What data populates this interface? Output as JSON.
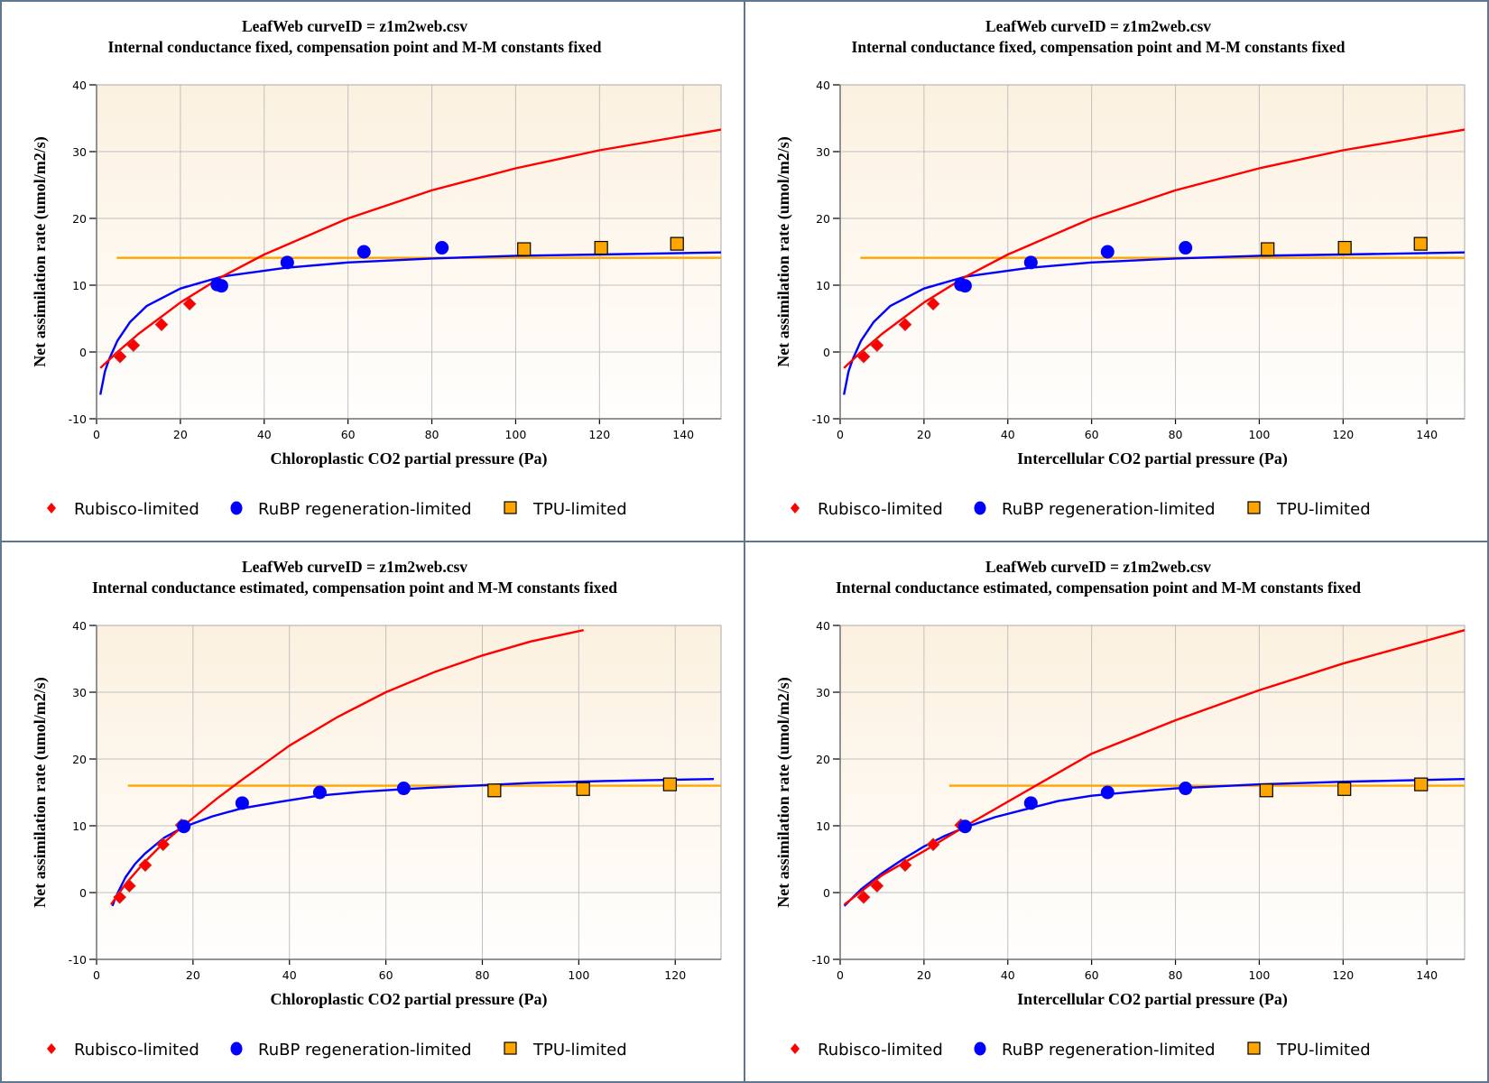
{
  "colors": {
    "rubisco": "#ff0000",
    "rubp": "#0000ff",
    "tpu": "#ffa500",
    "plot_bg_top": "#fcf1e0",
    "plot_bg_bottom": "#fffefd",
    "grid": "#c0c0c0",
    "divider": "#5e7894"
  },
  "legend": {
    "rubisco_label": "Rubisco-limited",
    "rubp_label": "RuBP regeneration-limited",
    "tpu_label": "TPU-limited"
  },
  "chart_data": [
    {
      "type": "scatter",
      "title": "LeafWeb curveID = z1m2web.csv",
      "subtitle": "Internal conductance fixed, compensation point and M-M constants fixed",
      "xlabel": "Chloroplastic CO2 partial pressure (Pa)",
      "ylabel": "Net assimilation rate (umol/m2/s)",
      "xlim": [
        0,
        149
      ],
      "ylim": [
        -10,
        40
      ],
      "xticks": [
        0,
        20,
        40,
        60,
        80,
        100,
        120,
        140
      ],
      "yticks": [
        -10,
        0,
        10,
        20,
        30,
        40
      ],
      "grid": true,
      "legend_position": "bottom",
      "series": [
        {
          "name": "Rubisco-limited",
          "kind": "points",
          "marker": "diamond",
          "points": [
            [
              5.6,
              -0.7
            ],
            [
              8.8,
              1.0
            ],
            [
              15.5,
              4.1
            ],
            [
              22.2,
              7.2
            ]
          ]
        },
        {
          "name": "RuBP regeneration-limited",
          "kind": "points",
          "marker": "circle",
          "points": [
            [
              28.8,
              10.1
            ],
            [
              29.8,
              9.9
            ],
            [
              45.5,
              13.4
            ],
            [
              63.8,
              15.0
            ],
            [
              82.4,
              15.6
            ]
          ]
        },
        {
          "name": "TPU-limited",
          "kind": "points",
          "marker": "square",
          "points": [
            [
              102.0,
              15.4
            ],
            [
              120.4,
              15.6
            ],
            [
              138.5,
              16.2
            ]
          ]
        },
        {
          "name": "Rubisco-limited fit",
          "kind": "line",
          "color_key": "rubisco",
          "points": [
            [
              0.9,
              -2.4
            ],
            [
              5,
              0.0
            ],
            [
              10,
              2.7
            ],
            [
              20,
              7.4
            ],
            [
              30,
              11.3
            ],
            [
              40,
              14.6
            ],
            [
              60,
              20.0
            ],
            [
              80,
              24.2
            ],
            [
              100,
              27.5
            ],
            [
              120,
              30.2
            ],
            [
              149,
              33.3
            ]
          ]
        },
        {
          "name": "RuBP regeneration-limited fit",
          "kind": "line",
          "color_key": "rubp",
          "points": [
            [
              0.9,
              -6.4
            ],
            [
              2,
              -2.9
            ],
            [
              3,
              -1.1
            ],
            [
              5,
              1.7
            ],
            [
              8,
              4.5
            ],
            [
              12,
              6.9
            ],
            [
              20,
              9.5
            ],
            [
              30,
              11.3
            ],
            [
              45,
              12.6
            ],
            [
              60,
              13.4
            ],
            [
              80,
              14.0
            ],
            [
              100,
              14.4
            ],
            [
              120,
              14.6
            ],
            [
              149,
              14.9
            ]
          ]
        },
        {
          "name": "TPU-limited fit",
          "kind": "line",
          "color_key": "tpu",
          "points": [
            [
              4.8,
              14.1
            ],
            [
              149,
              14.1
            ]
          ]
        }
      ]
    },
    {
      "type": "scatter",
      "title": "LeafWeb curveID = z1m2web.csv",
      "subtitle": "Internal conductance fixed, compensation point and M-M constants fixed",
      "xlabel": "Intercellular CO2 partial pressure (Pa)",
      "ylabel": "Net assimilation rate (umol/m2/s)",
      "xlim": [
        0,
        149
      ],
      "ylim": [
        -10,
        40
      ],
      "xticks": [
        0,
        20,
        40,
        60,
        80,
        100,
        120,
        140
      ],
      "yticks": [
        -10,
        0,
        10,
        20,
        30,
        40
      ],
      "grid": true,
      "legend_position": "bottom",
      "series": [
        {
          "name": "Rubisco-limited",
          "kind": "points",
          "marker": "diamond",
          "points": [
            [
              5.6,
              -0.7
            ],
            [
              8.8,
              1.0
            ],
            [
              15.5,
              4.1
            ],
            [
              22.2,
              7.2
            ]
          ]
        },
        {
          "name": "RuBP regeneration-limited",
          "kind": "points",
          "marker": "circle",
          "points": [
            [
              28.8,
              10.1
            ],
            [
              29.8,
              9.9
            ],
            [
              45.5,
              13.4
            ],
            [
              63.8,
              15.0
            ],
            [
              82.4,
              15.6
            ]
          ]
        },
        {
          "name": "TPU-limited",
          "kind": "points",
          "marker": "square",
          "points": [
            [
              102.0,
              15.4
            ],
            [
              120.4,
              15.6
            ],
            [
              138.5,
              16.2
            ]
          ]
        },
        {
          "name": "Rubisco-limited fit",
          "kind": "line",
          "color_key": "rubisco",
          "points": [
            [
              0.9,
              -2.4
            ],
            [
              5,
              0.0
            ],
            [
              10,
              2.7
            ],
            [
              20,
              7.4
            ],
            [
              30,
              11.3
            ],
            [
              40,
              14.6
            ],
            [
              60,
              20.0
            ],
            [
              80,
              24.2
            ],
            [
              100,
              27.5
            ],
            [
              120,
              30.2
            ],
            [
              149,
              33.3
            ]
          ]
        },
        {
          "name": "RuBP regeneration-limited fit",
          "kind": "line",
          "color_key": "rubp",
          "points": [
            [
              0.9,
              -6.4
            ],
            [
              2,
              -2.9
            ],
            [
              3,
              -1.1
            ],
            [
              5,
              1.7
            ],
            [
              8,
              4.5
            ],
            [
              12,
              6.9
            ],
            [
              20,
              9.5
            ],
            [
              30,
              11.3
            ],
            [
              45,
              12.6
            ],
            [
              60,
              13.4
            ],
            [
              80,
              14.0
            ],
            [
              100,
              14.4
            ],
            [
              120,
              14.6
            ],
            [
              149,
              14.9
            ]
          ]
        },
        {
          "name": "TPU-limited fit",
          "kind": "line",
          "color_key": "tpu",
          "points": [
            [
              4.8,
              14.1
            ],
            [
              149,
              14.1
            ]
          ]
        }
      ]
    },
    {
      "type": "scatter",
      "title": "LeafWeb curveID = z1m2web.csv",
      "subtitle": "Internal conductance estimated, compensation point and M-M constants fixed",
      "xlabel": "Chloroplastic CO2 partial pressure (Pa)",
      "ylabel": "Net assimilation rate (umol/m2/s)",
      "xlim": [
        0,
        129.5
      ],
      "ylim": [
        -10,
        40
      ],
      "xticks": [
        0,
        20,
        40,
        60,
        80,
        100,
        120
      ],
      "yticks": [
        -10,
        0,
        10,
        20,
        30,
        40
      ],
      "grid": true,
      "legend_position": "bottom",
      "series": [
        {
          "name": "Rubisco-limited",
          "kind": "points",
          "marker": "diamond",
          "points": [
            [
              4.8,
              -0.7
            ],
            [
              6.8,
              1.0
            ],
            [
              10.1,
              4.1
            ],
            [
              13.8,
              7.2
            ],
            [
              17.6,
              10.1
            ]
          ]
        },
        {
          "name": "RuBP regeneration-limited",
          "kind": "points",
          "marker": "circle",
          "points": [
            [
              18.1,
              9.9
            ],
            [
              30.2,
              13.4
            ],
            [
              46.3,
              15.0
            ],
            [
              63.7,
              15.6
            ]
          ]
        },
        {
          "name": "TPU-limited",
          "kind": "points",
          "marker": "square",
          "points": [
            [
              82.5,
              15.3
            ],
            [
              100.9,
              15.5
            ],
            [
              118.9,
              16.2
            ]
          ]
        },
        {
          "name": "Rubisco-limited fit",
          "kind": "line",
          "color_key": "rubisco",
          "points": [
            [
              3.0,
              -1.8
            ],
            [
              6,
              1.3
            ],
            [
              10,
              4.6
            ],
            [
              14,
              7.5
            ],
            [
              18,
              10.0
            ],
            [
              25,
              14.1
            ],
            [
              30,
              16.8
            ],
            [
              40,
              22.0
            ],
            [
              50,
              26.3
            ],
            [
              60,
              30.0
            ],
            [
              70,
              33.0
            ],
            [
              80,
              35.5
            ],
            [
              90,
              37.6
            ],
            [
              101,
              39.3
            ]
          ]
        },
        {
          "name": "RuBP regeneration-limited fit",
          "kind": "line",
          "color_key": "rubp",
          "points": [
            [
              3.3,
              -2.0
            ],
            [
              4,
              -0.6
            ],
            [
              6,
              2.3
            ],
            [
              8,
              4.3
            ],
            [
              10,
              5.8
            ],
            [
              14,
              8.2
            ],
            [
              18,
              9.8
            ],
            [
              24,
              11.4
            ],
            [
              30,
              12.6
            ],
            [
              38,
              13.6
            ],
            [
              46,
              14.5
            ],
            [
              55,
              15.1
            ],
            [
              64,
              15.5
            ],
            [
              75,
              15.9
            ],
            [
              90,
              16.4
            ],
            [
              105,
              16.7
            ],
            [
              128,
              17.0
            ]
          ]
        },
        {
          "name": "TPU-limited fit",
          "kind": "line",
          "color_key": "tpu",
          "points": [
            [
              6.5,
              16.0
            ],
            [
              129.5,
              16.0
            ]
          ]
        }
      ]
    },
    {
      "type": "scatter",
      "title": "LeafWeb curveID = z1m2web.csv",
      "subtitle": "Internal conductance estimated, compensation point and M-M constants fixed",
      "xlabel": "Intercellular CO2 partial pressure (Pa)",
      "ylabel": "Net assimilation rate (umol/m2/s)",
      "xlim": [
        0,
        149
      ],
      "ylim": [
        -10,
        40
      ],
      "xticks": [
        0,
        20,
        40,
        60,
        80,
        100,
        120,
        140
      ],
      "yticks": [
        -10,
        0,
        10,
        20,
        30,
        40
      ],
      "grid": true,
      "legend_position": "bottom",
      "series": [
        {
          "name": "Rubisco-limited",
          "kind": "points",
          "marker": "diamond",
          "points": [
            [
              5.6,
              -0.7
            ],
            [
              8.8,
              1.0
            ],
            [
              15.5,
              4.1
            ],
            [
              22.2,
              7.2
            ],
            [
              28.8,
              10.1
            ]
          ]
        },
        {
          "name": "RuBP regeneration-limited",
          "kind": "points",
          "marker": "circle",
          "points": [
            [
              29.8,
              9.9
            ],
            [
              45.5,
              13.4
            ],
            [
              63.8,
              15.0
            ],
            [
              82.4,
              15.6
            ]
          ]
        },
        {
          "name": "TPU-limited",
          "kind": "points",
          "marker": "square",
          "points": [
            [
              101.7,
              15.3
            ],
            [
              120.3,
              15.5
            ],
            [
              138.6,
              16.2
            ]
          ]
        },
        {
          "name": "Rubisco-limited fit",
          "kind": "line",
          "color_key": "rubisco",
          "points": [
            [
              1,
              -1.8
            ],
            [
              10,
              2.6
            ],
            [
              20,
              6.2
            ],
            [
              30,
              10.0
            ],
            [
              45,
              15.4
            ],
            [
              60,
              20.8
            ],
            [
              80,
              25.8
            ],
            [
              100,
              30.3
            ],
            [
              120,
              34.3
            ],
            [
              149,
              39.3
            ]
          ]
        },
        {
          "name": "RuBP regeneration-limited fit",
          "kind": "line",
          "color_key": "rubp",
          "points": [
            [
              1,
              -2.0
            ],
            [
              5,
              0.5
            ],
            [
              10,
              2.9
            ],
            [
              15,
              5.0
            ],
            [
              20,
              6.9
            ],
            [
              25,
              8.5
            ],
            [
              30,
              9.8
            ],
            [
              37,
              11.3
            ],
            [
              45,
              12.6
            ],
            [
              52,
              13.7
            ],
            [
              60,
              14.5
            ],
            [
              70,
              15.1
            ],
            [
              80,
              15.6
            ],
            [
              100,
              16.2
            ],
            [
              120,
              16.6
            ],
            [
              149,
              17.0
            ]
          ]
        },
        {
          "name": "TPU-limited fit",
          "kind": "line",
          "color_key": "tpu",
          "points": [
            [
              26,
              16.0
            ],
            [
              149,
              16.0
            ]
          ]
        }
      ]
    }
  ]
}
